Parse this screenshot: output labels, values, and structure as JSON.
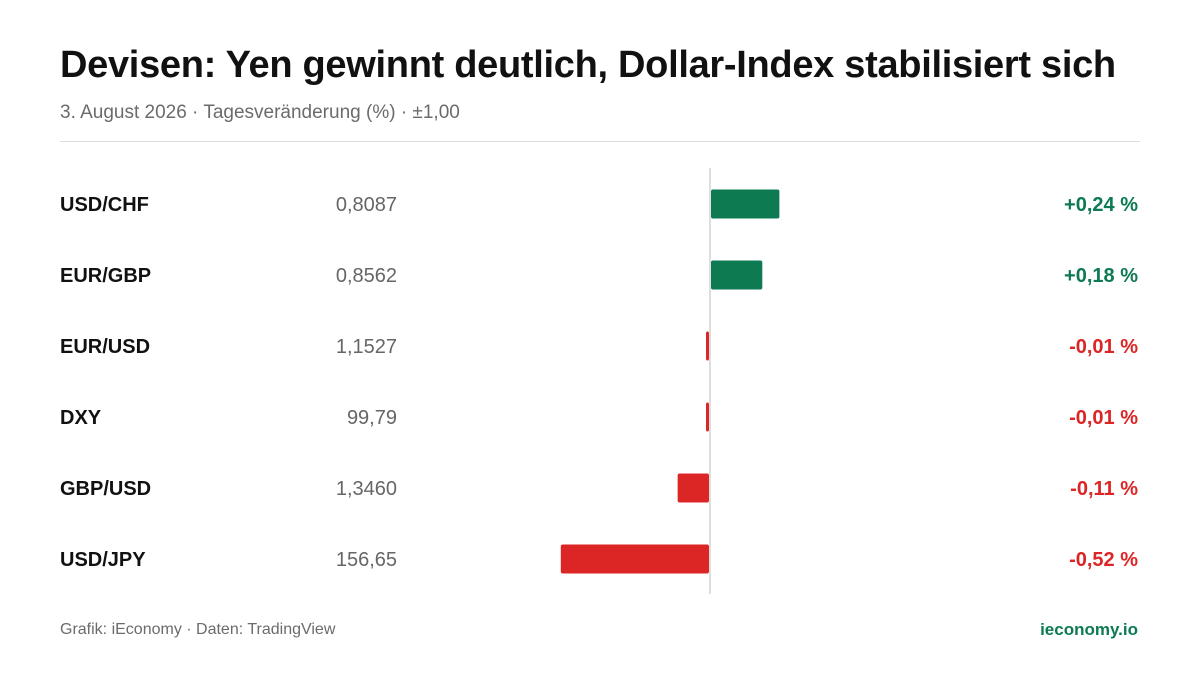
{
  "header": {
    "title": "Devisen: Yen gewinnt deutlich, Dollar-Index stabilisiert sich",
    "subtitle": "3. August 2026 · Tagesveränderung (%) · ±1,00"
  },
  "footer": {
    "source": "Grafik: iEconomy · Daten: TradingView",
    "brand": "ieconomy.io"
  },
  "colors": {
    "positive": "#0d7a52",
    "negative": "#dc2626",
    "axis": "#d4d4d4",
    "label": "#111111",
    "value": "#666666"
  },
  "chart_data": {
    "type": "bar",
    "orientation": "horizontal",
    "xlim": [
      -1.0,
      1.0
    ],
    "grid": false,
    "legend": "none",
    "rows": [
      {
        "pair": "USD/CHF",
        "rate": "0,8087",
        "change": 0.24,
        "change_label": "+0,24 %"
      },
      {
        "pair": "EUR/GBP",
        "rate": "0,8562",
        "change": 0.18,
        "change_label": "+0,18 %"
      },
      {
        "pair": "EUR/USD",
        "rate": "1,1527",
        "change": -0.01,
        "change_label": "-0,01 %"
      },
      {
        "pair": "DXY",
        "rate": "99,79",
        "change": -0.01,
        "change_label": "-0,01 %"
      },
      {
        "pair": "GBP/USD",
        "rate": "1,3460",
        "change": -0.11,
        "change_label": "-0,11 %"
      },
      {
        "pair": "USD/JPY",
        "rate": "156,65",
        "change": -0.52,
        "change_label": "-0,52 %"
      }
    ]
  }
}
